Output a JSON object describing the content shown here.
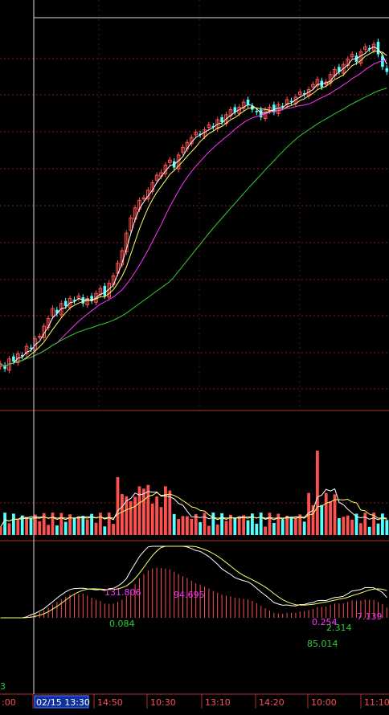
{
  "chart_data": [
    {
      "panel": "price",
      "type": "candlestick",
      "candles_close": [
        3.2,
        3.18,
        3.22,
        3.21,
        3.24,
        3.23,
        3.27,
        3.26,
        3.3,
        3.31,
        3.35,
        3.38,
        3.42,
        3.4,
        3.44,
        3.43,
        3.46,
        3.45,
        3.47,
        3.44,
        3.46,
        3.45,
        3.48,
        3.5,
        3.47,
        3.52,
        3.55,
        3.6,
        3.65,
        3.72,
        3.78,
        3.82,
        3.85,
        3.86,
        3.89,
        3.92,
        3.95,
        3.96,
        3.99,
        4.01,
        3.98,
        4.03,
        4.06,
        4.08,
        4.1,
        4.12,
        4.11,
        4.13,
        4.15,
        4.14,
        4.17,
        4.16,
        4.19,
        4.21,
        4.2,
        4.22,
        4.24,
        4.23,
        4.21,
        4.2,
        4.18,
        4.21,
        4.22,
        4.2,
        4.23,
        4.22,
        4.25,
        4.24,
        4.26,
        4.28,
        4.27,
        4.29,
        4.31,
        4.33,
        4.3,
        4.32,
        4.35,
        4.37,
        4.36,
        4.39,
        4.41,
        4.43,
        4.4,
        4.44,
        4.46,
        4.45,
        4.47,
        4.43,
        4.38,
        4.36
      ],
      "ma_colors": [
        "#ffffff",
        "#ffff66",
        "#ff33ff",
        "#33cc33"
      ],
      "up_color": "#ff5050",
      "down_color": "#54ffff",
      "grid": true
    },
    {
      "panel": "volume",
      "type": "bar",
      "up_color": "#ff5050",
      "down_color": "#54ffff"
    },
    {
      "panel": "macd",
      "type": "bar",
      "annotations": [
        {
          "text": "131.806",
          "color": "#ff33ff"
        },
        {
          "text": "94.695",
          "color": "#ff33ff"
        },
        {
          "text": "0.084",
          "color": "#33cc33"
        },
        {
          "text": "0.254",
          "color": "#ff33ff"
        },
        {
          "text": "2.314",
          "color": "#33cc33"
        },
        {
          "text": "7.139",
          "color": "#ff33ff"
        },
        {
          "text": "85.014",
          "color": "#33cc33"
        },
        {
          "text": "3",
          "color": "#33cc33"
        }
      ]
    }
  ],
  "time_axis": {
    "labels": [
      ":00",
      "02/15 13:30",
      "14:50",
      "10:30",
      "13:10",
      "14:20",
      "10:00",
      "11:10"
    ],
    "selected": "02/15 13:30"
  }
}
